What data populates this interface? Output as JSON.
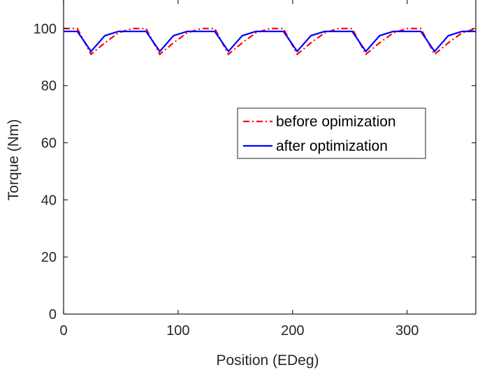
{
  "chart_data": {
    "type": "line",
    "title": "",
    "xlabel": "Position (EDeg)",
    "ylabel": "Torque (Nm)",
    "xlim": [
      0,
      360
    ],
    "ylim": [
      0,
      110
    ],
    "xticks": [
      0,
      100,
      200,
      300
    ],
    "yticks": [
      0,
      20,
      40,
      60,
      80,
      100
    ],
    "grid": false,
    "legend": {
      "placement": "center-right"
    },
    "series": [
      {
        "name": "before opimization",
        "color": "#ff0000",
        "style": "dash-dot",
        "x": [
          0,
          12,
          24,
          36,
          48,
          60,
          72,
          84,
          96,
          108,
          120,
          132,
          144,
          156,
          168,
          180,
          192,
          204,
          216,
          228,
          240,
          252,
          264,
          276,
          288,
          300,
          312,
          324,
          336,
          348,
          360
        ],
        "y": [
          100,
          100,
          91,
          95,
          98.5,
          100,
          100,
          91,
          95,
          98.5,
          100,
          100,
          91,
          95,
          98.5,
          100,
          100,
          91,
          95,
          98.5,
          100,
          100,
          91,
          95,
          98.5,
          100,
          100,
          91,
          95,
          98.5,
          100
        ]
      },
      {
        "name": "after optimization",
        "color": "#0000ff",
        "style": "solid",
        "x": [
          0,
          12,
          24,
          36,
          48,
          60,
          72,
          84,
          96,
          108,
          120,
          132,
          144,
          156,
          168,
          180,
          192,
          204,
          216,
          228,
          240,
          252,
          264,
          276,
          288,
          300,
          312,
          324,
          336,
          348,
          360
        ],
        "y": [
          99,
          99,
          92,
          97.5,
          99,
          99,
          99,
          92,
          97.5,
          99,
          99,
          99,
          92,
          97.5,
          99,
          99,
          99,
          92,
          97.5,
          99,
          99,
          99,
          92,
          97.5,
          99,
          99,
          99,
          92,
          97.5,
          99,
          99
        ]
      }
    ]
  }
}
